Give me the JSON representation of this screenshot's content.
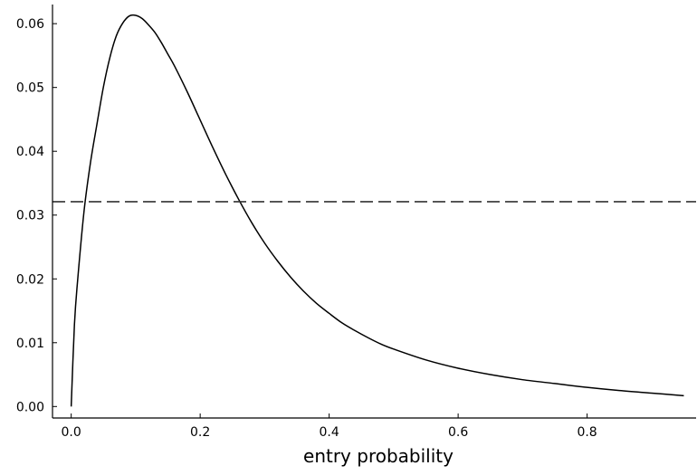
{
  "chart_data": {
    "type": "line",
    "title": "",
    "xlabel": "entry probability",
    "ylabel": "",
    "xlim": [
      -0.029,
      0.969
    ],
    "ylim": [
      -0.0018,
      0.063
    ],
    "grid": false,
    "legend": "none",
    "x_ticks": [
      0.0,
      0.2,
      0.4,
      0.6,
      0.8
    ],
    "x_tick_labels": [
      "0.0",
      "0.2",
      "0.4",
      "0.6",
      "0.8"
    ],
    "y_ticks": [
      0.0,
      0.01,
      0.02,
      0.03,
      0.04,
      0.05,
      0.06
    ],
    "y_tick_labels": [
      "0.00",
      "0.01",
      "0.02",
      "0.03",
      "0.04",
      "0.05",
      "0.06"
    ],
    "series": [
      {
        "style": "solid",
        "color": "#000000",
        "x": [
          0.0,
          0.005,
          0.01,
          0.02,
          0.03,
          0.04,
          0.05,
          0.06,
          0.07,
          0.08,
          0.09,
          0.1,
          0.11,
          0.12,
          0.13,
          0.14,
          0.15,
          0.16,
          0.18,
          0.2,
          0.22,
          0.24,
          0.26,
          0.28,
          0.3,
          0.32,
          0.34,
          0.36,
          0.38,
          0.4,
          0.42,
          0.44,
          0.46,
          0.48,
          0.5,
          0.55,
          0.6,
          0.65,
          0.7,
          0.75,
          0.8,
          0.85,
          0.9,
          0.95
        ],
        "y": [
          0.0,
          0.0128,
          0.0198,
          0.0307,
          0.0383,
          0.0443,
          0.0501,
          0.0547,
          0.0581,
          0.0601,
          0.0612,
          0.0613,
          0.0608,
          0.0598,
          0.0586,
          0.057,
          0.0552,
          0.0534,
          0.0493,
          0.0449,
          0.0405,
          0.0363,
          0.0324,
          0.0288,
          0.0256,
          0.0228,
          0.0203,
          0.0181,
          0.0162,
          0.0146,
          0.0131,
          0.0119,
          0.0108,
          0.0098,
          0.009,
          0.0073,
          0.006,
          0.005,
          0.0042,
          0.0036,
          0.003,
          0.0025,
          0.0021,
          0.0017
        ]
      },
      {
        "style": "dashed",
        "color": "#333333",
        "x": [
          -0.029,
          0.969
        ],
        "y": [
          0.0321,
          0.0321
        ]
      }
    ]
  }
}
